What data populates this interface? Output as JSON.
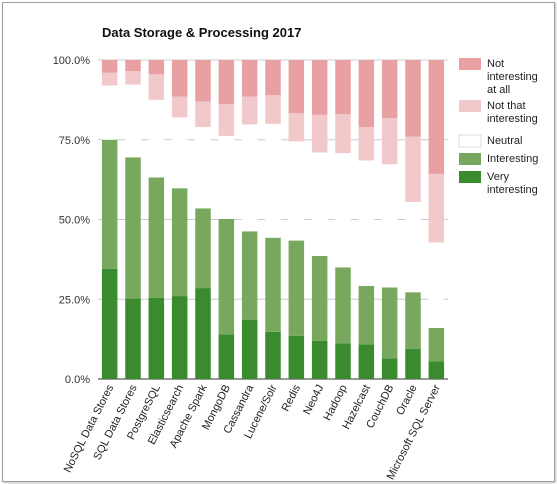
{
  "chart_data": {
    "type": "bar",
    "stacked": true,
    "title": "Data Storage & Processing 2017",
    "xlabel": "",
    "ylabel": "",
    "ylim": [
      0,
      100
    ],
    "y_ticks": [
      "0.0%",
      "25.0%",
      "50.0%",
      "75.0%",
      "100.0%"
    ],
    "grid": true,
    "legend_position": "right",
    "categories": [
      "NoSQL Data Stores",
      "SQL Data Stores",
      "PostgreSQL",
      "Elasticsearch",
      "Apache Spark",
      "MongoDB",
      "Cassandra",
      "Lucene/Solr",
      "Redis",
      "Neo4J",
      "Hadoop",
      "Hazelcast",
      "CouchDB",
      "Oracle",
      "Microsoft SQL Server"
    ],
    "series": [
      {
        "name": "Very interesting",
        "color": "#3a8a2e",
        "values": [
          34.5,
          25.2,
          25.5,
          26.0,
          28.5,
          14.0,
          18.5,
          14.8,
          13.5,
          12.0,
          11.2,
          10.8,
          6.5,
          9.5,
          5.5
        ]
      },
      {
        "name": "Interesting",
        "color": "#78a85e",
        "values": [
          40.5,
          44.3,
          37.7,
          33.8,
          25.0,
          36.2,
          27.8,
          29.5,
          29.9,
          26.6,
          23.8,
          18.4,
          22.2,
          17.7,
          10.5
        ]
      },
      {
        "name": "Neutral",
        "color": "#ffffff",
        "values": [
          17.0,
          22.8,
          24.3,
          22.2,
          25.5,
          26.0,
          33.5,
          35.7,
          31.1,
          32.4,
          35.8,
          39.3,
          38.6,
          28.3,
          26.8
        ]
      },
      {
        "name": "Not that interesting",
        "color": "#f2c9cb",
        "values": [
          4.0,
          4.2,
          8.0,
          6.5,
          8.0,
          10.0,
          8.7,
          9.0,
          8.8,
          11.8,
          12.2,
          10.5,
          14.5,
          20.5,
          21.5
        ]
      },
      {
        "name": "Not interesting at all",
        "color": "#e8a0a3",
        "values": [
          4.0,
          3.5,
          4.5,
          11.5,
          13.0,
          13.8,
          11.5,
          11.0,
          16.7,
          17.2,
          17.0,
          21.0,
          18.2,
          24.0,
          35.7
        ]
      }
    ]
  }
}
